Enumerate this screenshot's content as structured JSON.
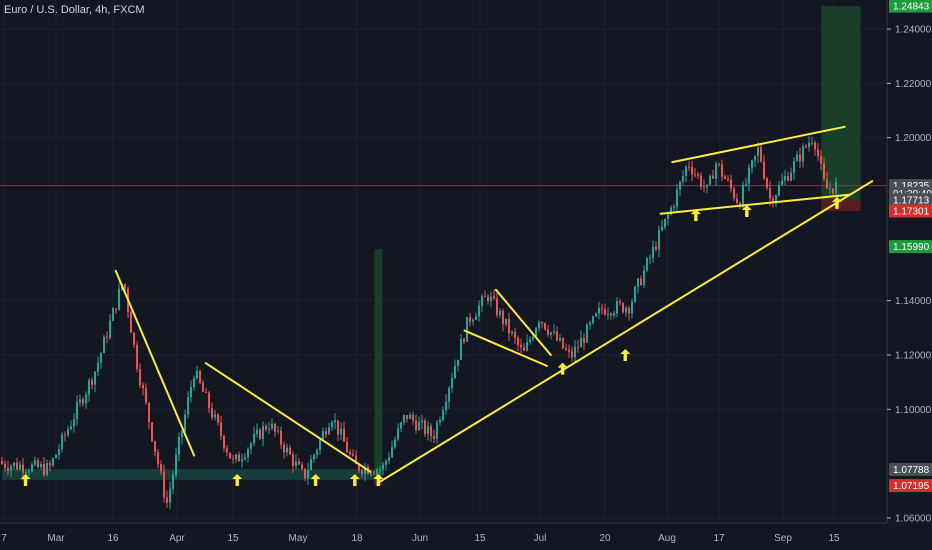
{
  "header": {
    "symbol_title": "Euro / U.S. Dollar, 4h, FXCM"
  },
  "colors": {
    "background": "#131722",
    "grid": "#1e222d",
    "candle_up": "#26a69a",
    "candle_down": "#ef5350",
    "trendline": "#ffeb3b",
    "arrow": "#ffeb3b",
    "profit_zone": "#1b4d2a",
    "loss_zone": "#5c1f24",
    "support_zone": "#18433f",
    "current_price_line": "#7b3b46"
  },
  "chart_data": {
    "type": "candlestick",
    "title": "Euro / U.S. Dollar, 4h, FXCM",
    "x_tick_labels": [
      "7",
      "Mar",
      "16",
      "Apr",
      "15",
      "May",
      "18",
      "Jun",
      "15",
      "Jul",
      "20",
      "Aug",
      "17",
      "Sep",
      "15"
    ],
    "y_tick_labels": [
      "1.24000",
      "1.22000",
      "1.20000",
      "1.14000",
      "1.12000",
      "1.10000",
      "1.06000"
    ],
    "ylim": [
      1.057,
      1.252
    ],
    "price_path": [
      {
        "date": "2020-02-07",
        "price": 1.08
      },
      {
        "date": "2020-02-19",
        "price": 1.078
      },
      {
        "date": "2020-03-02",
        "price": 1.115
      },
      {
        "date": "2020-03-09",
        "price": 1.148
      },
      {
        "date": "2020-03-12",
        "price": 1.12
      },
      {
        "date": "2020-03-20",
        "price": 1.065
      },
      {
        "date": "2020-03-27",
        "price": 1.114
      },
      {
        "date": "2020-04-06",
        "price": 1.08
      },
      {
        "date": "2020-04-15",
        "price": 1.095
      },
      {
        "date": "2020-04-24",
        "price": 1.075
      },
      {
        "date": "2020-05-01",
        "price": 1.098
      },
      {
        "date": "2020-05-07",
        "price": 1.079
      },
      {
        "date": "2020-05-14",
        "price": 1.078
      },
      {
        "date": "2020-05-20",
        "price": 1.098
      },
      {
        "date": "2020-05-27",
        "price": 1.09
      },
      {
        "date": "2020-06-05",
        "price": 1.133
      },
      {
        "date": "2020-06-10",
        "price": 1.142
      },
      {
        "date": "2020-06-19",
        "price": 1.12
      },
      {
        "date": "2020-06-23",
        "price": 1.134
      },
      {
        "date": "2020-07-01",
        "price": 1.119
      },
      {
        "date": "2020-07-09",
        "price": 1.137
      },
      {
        "date": "2020-07-16",
        "price": 1.138
      },
      {
        "date": "2020-07-27",
        "price": 1.175
      },
      {
        "date": "2020-07-31",
        "price": 1.191
      },
      {
        "date": "2020-08-05",
        "price": 1.18
      },
      {
        "date": "2020-08-07",
        "price": 1.191
      },
      {
        "date": "2020-08-13",
        "price": 1.176
      },
      {
        "date": "2020-08-18",
        "price": 1.196
      },
      {
        "date": "2020-08-21",
        "price": 1.177
      },
      {
        "date": "2020-08-27",
        "price": 1.19
      },
      {
        "date": "2020-09-01",
        "price": 1.201
      },
      {
        "date": "2020-09-04",
        "price": 1.181
      },
      {
        "date": "2020-09-07",
        "price": 1.1823
      }
    ],
    "drawings": {
      "trendlines": [
        {
          "from": {
            "date": "2020-03-07",
            "price": 1.151
          },
          "to": {
            "date": "2020-03-27",
            "price": 1.083
          }
        },
        {
          "from": {
            "date": "2020-03-30",
            "price": 1.117
          },
          "to": {
            "date": "2020-05-11",
            "price": 1.077
          }
        },
        {
          "from": {
            "date": "2020-06-04",
            "price": 1.129
          },
          "to": {
            "date": "2020-06-25",
            "price": 1.116
          }
        },
        {
          "from": {
            "date": "2020-06-12",
            "price": 1.144
          },
          "to": {
            "date": "2020-06-26",
            "price": 1.12
          }
        },
        {
          "from": {
            "date": "2020-05-13",
            "price": 1.073
          },
          "to": {
            "date": "2020-09-16",
            "price": 1.184
          }
        },
        {
          "from": {
            "date": "2020-07-27",
            "price": 1.191
          },
          "to": {
            "date": "2020-09-09",
            "price": 1.204
          }
        },
        {
          "from": {
            "date": "2020-07-24",
            "price": 1.172
          },
          "to": {
            "date": "2020-09-10",
            "price": 1.179
          }
        }
      ],
      "arrows": [
        {
          "date": "2020-02-13",
          "price": 1.074
        },
        {
          "date": "2020-04-07",
          "price": 1.074
        },
        {
          "date": "2020-04-27",
          "price": 1.074
        },
        {
          "date": "2020-05-07",
          "price": 1.074
        },
        {
          "date": "2020-05-13",
          "price": 1.074
        },
        {
          "date": "2020-06-29",
          "price": 1.115
        },
        {
          "date": "2020-07-15",
          "price": 1.12
        },
        {
          "date": "2020-08-02",
          "price": 1.1715
        },
        {
          "date": "2020-08-15",
          "price": 1.173
        },
        {
          "date": "2020-09-07",
          "price": 1.176
        }
      ],
      "positions": [
        {
          "kind": "long",
          "date_start": "2020-05-12",
          "date_end": "2020-05-14",
          "entry": 1.076,
          "target": 1.159,
          "stop": 1.072
        },
        {
          "kind": "long",
          "date_start": "2020-09-03",
          "date_end": "2020-09-13",
          "entry": 1.1771,
          "target": 1.2484,
          "stop": 1.173
        }
      ],
      "support_zone": {
        "date_start": "2020-02-07",
        "date_end": "2020-05-14",
        "price_low": 1.074,
        "price_high": 1.078
      }
    },
    "price_badges": [
      {
        "label": "1.24843",
        "price": 1.24843,
        "color": "#1e9b3c"
      },
      {
        "label": "1.18235",
        "price": 1.18235,
        "color": "#4a4e57"
      },
      {
        "label": "01:20:40",
        "price": 1.1795,
        "color": "#4a4e57"
      },
      {
        "label": "1.17713",
        "price": 1.17713,
        "color": "#4a4e57"
      },
      {
        "label": "1.17301",
        "price": 1.17301,
        "color": "#d32f2f"
      },
      {
        "label": "1.15990",
        "price": 1.1599,
        "color": "#1e9b3c"
      },
      {
        "label": "1.07788",
        "price": 1.07788,
        "color": "#4a4e57"
      },
      {
        "label": "1.07195",
        "price": 1.07195,
        "color": "#d32f2f"
      }
    ],
    "current_price": 1.18235,
    "grid": true
  }
}
